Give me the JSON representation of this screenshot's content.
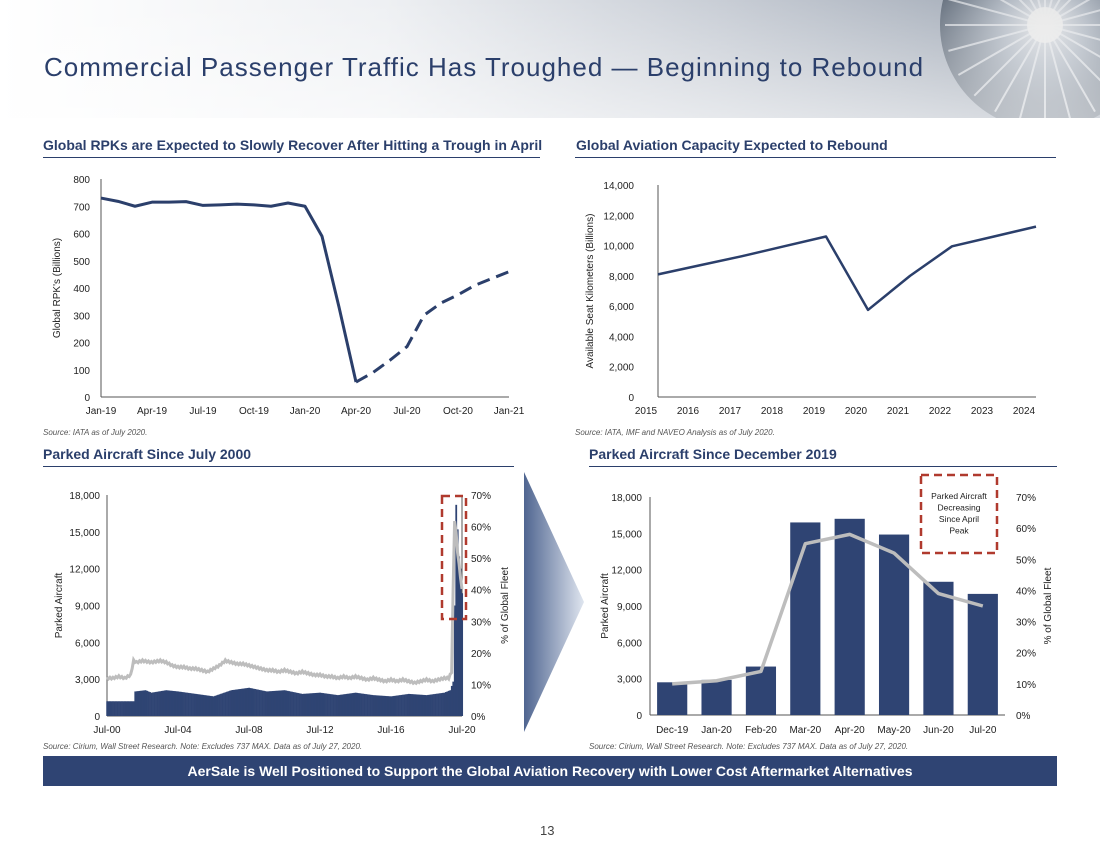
{
  "title": "Commercial Passenger Traffic Has Troughed — Beginning to Rebound",
  "footer_banner": "AerSale is Well Positioned to Support the Global Aviation Recovery with Lower Cost Aftermarket Alternatives",
  "page_number": "13",
  "colors": {
    "navy": "#2f4473",
    "title": "#2b3f6b",
    "gray_line": "#bdbdbd",
    "callout": "#b03a2e"
  },
  "panels": {
    "rpk": {
      "title": "Global RPKs are Expected to Slowly Recover After Hitting a Trough in April",
      "source": "Source: IATA as of July 2020."
    },
    "capacity": {
      "title": "Global Aviation Capacity Expected to Rebound",
      "source": "Source: IATA, IMF and NAVEO Analysis as of July 2020."
    },
    "parked_long": {
      "title": "Parked Aircraft Since July 2000",
      "source": "Source: Cirium, Wall Street Research. Note: Excludes 737 MAX. Data as of July 27, 2020."
    },
    "parked_short": {
      "title": "Parked Aircraft Since December 2019",
      "source": "Source: Cirium, Wall Street Research. Note: Excludes 737 MAX. Data as of July 27, 2020.",
      "callout": "Parked Aircraft Decreasing Since April Peak"
    }
  },
  "chart_data": [
    {
      "type": "line",
      "title": "Global RPKs are Expected to Slowly Recover After Hitting a Trough in April",
      "ylabel": "Global RPK's (Billions)",
      "ylim": [
        0,
        800
      ],
      "yticks": [
        "0",
        "100",
        "200",
        "300",
        "400",
        "500",
        "600",
        "700",
        "800"
      ],
      "xtick_labels": [
        "Jan-19",
        "Apr-19",
        "Jul-19",
        "Oct-19",
        "Jan-20",
        "Apr-20",
        "Jul-20",
        "Oct-20",
        "Jan-21"
      ],
      "x_count": 25,
      "actual": {
        "start_index": 0,
        "values": [
          730,
          718,
          700,
          715,
          715,
          717,
          703,
          705,
          708,
          705,
          700,
          712,
          700,
          590,
          330,
          55
        ]
      },
      "forecast": {
        "start_index": 15,
        "values": [
          55,
          90,
          135,
          185,
          300,
          345,
          375,
          410,
          435,
          460
        ]
      }
    },
    {
      "type": "line",
      "title": "Global Aviation Capacity Expected to Rebound",
      "ylabel": "Available Seat Kilometers (Billions)",
      "ylim": [
        0,
        14000
      ],
      "yticks": [
        "0",
        "2,000",
        "4,000",
        "6,000",
        "8,000",
        "10,000",
        "12,000",
        "14,000"
      ],
      "categories": [
        "2015",
        "2016",
        "2017",
        "2018",
        "2019",
        "2020",
        "2021",
        "2022",
        "2023",
        "2024"
      ],
      "values": [
        8100,
        8700,
        9300,
        9950,
        10600,
        5750,
        8000,
        9950,
        10600,
        11250
      ]
    },
    {
      "type": "bar",
      "title": "Parked Aircraft Since July 2000",
      "ylabel": "Parked Aircraft",
      "y2label": "% of Global Fleet",
      "ylim": [
        0,
        18000
      ],
      "y2lim": [
        0,
        70
      ],
      "yticks": [
        "0",
        "3,000",
        "6,000",
        "9,000",
        "12,000",
        "15,000",
        "18,000"
      ],
      "y2ticks": [
        "0%",
        "10%",
        "20%",
        "30%",
        "40%",
        "50%",
        "60%",
        "70%"
      ],
      "xtick_labels": [
        "Jul-00",
        "Jul-04",
        "Jul-08",
        "Jul-12",
        "Jul-16",
        "Jul-20"
      ],
      "x_count": 241,
      "bars_anchor_index": [
        0,
        18,
        19,
        26,
        30,
        40,
        48,
        60,
        72,
        84,
        96,
        108,
        120,
        132,
        144,
        156,
        168,
        180,
        192,
        204,
        216,
        228,
        232,
        234,
        235,
        236,
        237,
        238,
        239,
        240
      ],
      "bars_anchor_value": [
        1200,
        1200,
        2000,
        2100,
        1900,
        2100,
        2000,
        1800,
        1600,
        2100,
        2300,
        2000,
        2100,
        1800,
        1900,
        1700,
        1900,
        1700,
        1600,
        1800,
        1700,
        1900,
        2100,
        2800,
        9000,
        17200,
        15200,
        13000,
        12000,
        10000
      ],
      "pct_anchor_index": [
        0,
        4,
        8,
        12,
        16,
        18,
        20,
        24,
        30,
        36,
        40,
        44,
        48,
        52,
        56,
        60,
        64,
        68,
        72,
        76,
        80,
        84,
        88,
        92,
        96,
        100,
        104,
        108,
        112,
        116,
        120,
        124,
        128,
        132,
        136,
        140,
        144,
        148,
        152,
        156,
        160,
        164,
        168,
        172,
        176,
        180,
        184,
        188,
        192,
        196,
        200,
        204,
        208,
        212,
        216,
        220,
        224,
        228,
        231,
        233,
        234,
        235,
        236,
        237,
        238,
        239,
        240
      ],
      "pct_anchor_value": [
        12,
        12,
        12.5,
        12,
        13,
        17.5,
        17,
        17.5,
        17,
        17.5,
        17,
        16,
        15.5,
        15.5,
        15,
        15,
        14.5,
        14,
        15,
        16,
        17.5,
        17,
        16.5,
        16.5,
        16,
        15.5,
        15,
        14.5,
        14.5,
        14,
        14.5,
        14,
        13.5,
        14,
        13.5,
        13,
        13,
        12.5,
        12.5,
        12,
        12.5,
        12,
        12.5,
        12,
        11.5,
        12,
        11.5,
        11,
        11.5,
        11,
        11.5,
        11,
        10.5,
        11,
        11.5,
        11,
        11.5,
        12,
        12,
        14,
        40,
        62,
        58,
        52,
        48,
        44,
        40
      ]
    },
    {
      "type": "bar",
      "title": "Parked Aircraft Since December 2019",
      "ylabel": "Parked Aircraft",
      "y2label": "% of Global Fleet",
      "ylim": [
        0,
        18000
      ],
      "y2lim": [
        0,
        70
      ],
      "yticks": [
        "0",
        "3,000",
        "6,000",
        "9,000",
        "12,000",
        "15,000",
        "18,000"
      ],
      "y2ticks": [
        "0%",
        "10%",
        "20%",
        "30%",
        "40%",
        "50%",
        "60%",
        "70%"
      ],
      "categories": [
        "Dec-19",
        "Jan-20",
        "Feb-20",
        "Mar-20",
        "Apr-20",
        "May-20",
        "Jun-20",
        "Jul-20"
      ],
      "values": [
        2700,
        2900,
        4000,
        15900,
        16200,
        14900,
        11000,
        10000
      ],
      "series": [
        {
          "name": "Parked Aircraft",
          "values": [
            2700,
            2900,
            4000,
            15900,
            16200,
            14900,
            11000,
            10000
          ]
        },
        {
          "name": "% of Global Fleet",
          "values": [
            10,
            11,
            14,
            55,
            58,
            52,
            39,
            35
          ]
        }
      ]
    }
  ]
}
